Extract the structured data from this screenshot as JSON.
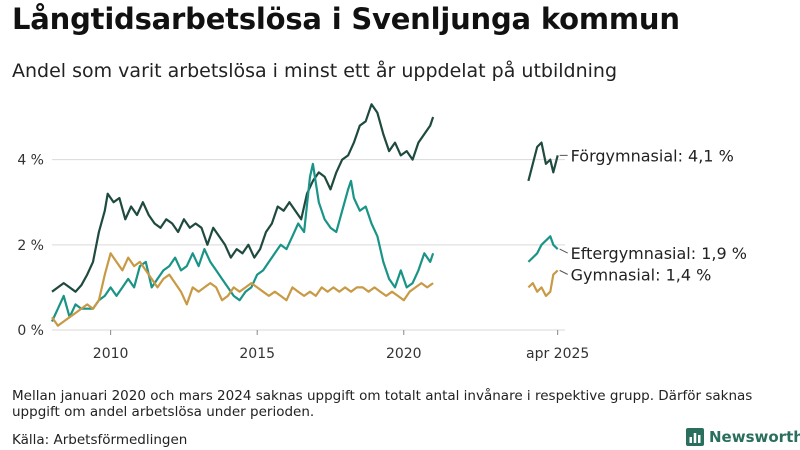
{
  "header": {
    "title": "Långtidsarbetslösa i Svenljunga kommun",
    "subtitle": "Andel som varit arbetslösa i minst ett år uppdelat på utbildning"
  },
  "footer": {
    "note": "Mellan januari 2020 och mars 2024 saknas uppgift om totalt antal invånare i respektive grupp. Därför saknas uppgift om andel arbetslösa under perioden.",
    "source": "Källa: Arbetsförmedlingen",
    "brand": "Newsworthy",
    "brand_icon": "bar-chart-logo-icon"
  },
  "chart_data": {
    "type": "line",
    "xlim": [
      2008.0,
      2025.5
    ],
    "ylim": [
      0,
      5.4
    ],
    "yticks": [
      {
        "value": 0,
        "label": "0 %"
      },
      {
        "value": 2,
        "label": "2 %"
      },
      {
        "value": 4,
        "label": "4 %"
      }
    ],
    "xticks": [
      {
        "value": 2010,
        "label": "2010"
      },
      {
        "value": 2015,
        "label": "2015"
      },
      {
        "value": 2020,
        "label": "2020"
      },
      {
        "value": 2025.25,
        "label": "apr 2025"
      }
    ],
    "grid": true,
    "series": [
      {
        "name": "Förgymnasial",
        "end_label": "Förgymnasial: 4,1 %",
        "color": "#1f4a3f",
        "segments": [
          [
            [
              2008.0,
              0.9
            ],
            [
              2008.2,
              1.0
            ],
            [
              2008.4,
              1.1
            ],
            [
              2008.6,
              1.0
            ],
            [
              2008.8,
              0.9
            ],
            [
              2009.0,
              1.05
            ],
            [
              2009.2,
              1.3
            ],
            [
              2009.4,
              1.6
            ],
            [
              2009.6,
              2.3
            ],
            [
              2009.8,
              2.8
            ],
            [
              2009.9,
              3.2
            ],
            [
              2010.1,
              3.0
            ],
            [
              2010.3,
              3.1
            ],
            [
              2010.5,
              2.6
            ],
            [
              2010.7,
              2.9
            ],
            [
              2010.9,
              2.7
            ],
            [
              2011.1,
              3.0
            ],
            [
              2011.3,
              2.7
            ],
            [
              2011.5,
              2.5
            ],
            [
              2011.7,
              2.4
            ],
            [
              2011.9,
              2.6
            ],
            [
              2012.1,
              2.5
            ],
            [
              2012.3,
              2.3
            ],
            [
              2012.5,
              2.6
            ],
            [
              2012.7,
              2.4
            ],
            [
              2012.9,
              2.5
            ],
            [
              2013.1,
              2.4
            ],
            [
              2013.3,
              2.0
            ],
            [
              2013.5,
              2.4
            ],
            [
              2013.7,
              2.2
            ],
            [
              2013.9,
              2.0
            ],
            [
              2014.1,
              1.7
            ],
            [
              2014.3,
              1.9
            ],
            [
              2014.5,
              1.8
            ],
            [
              2014.7,
              2.0
            ],
            [
              2014.9,
              1.7
            ],
            [
              2015.1,
              1.9
            ],
            [
              2015.3,
              2.3
            ],
            [
              2015.5,
              2.5
            ],
            [
              2015.7,
              2.9
            ],
            [
              2015.9,
              2.8
            ],
            [
              2016.1,
              3.0
            ],
            [
              2016.3,
              2.8
            ],
            [
              2016.5,
              2.6
            ],
            [
              2016.7,
              3.2
            ],
            [
              2016.9,
              3.5
            ],
            [
              2017.1,
              3.7
            ],
            [
              2017.3,
              3.6
            ],
            [
              2017.5,
              3.3
            ],
            [
              2017.7,
              3.7
            ],
            [
              2017.9,
              4.0
            ],
            [
              2018.1,
              4.1
            ],
            [
              2018.3,
              4.4
            ],
            [
              2018.5,
              4.8
            ],
            [
              2018.7,
              4.9
            ],
            [
              2018.9,
              5.3
            ],
            [
              2019.1,
              5.1
            ],
            [
              2019.3,
              4.6
            ],
            [
              2019.5,
              4.2
            ],
            [
              2019.7,
              4.4
            ],
            [
              2019.9,
              4.1
            ],
            [
              2020.1,
              4.2
            ],
            [
              2020.3,
              4.0
            ],
            [
              2020.5,
              4.4
            ],
            [
              2020.7,
              4.6
            ],
            [
              2020.9,
              4.8
            ],
            [
              2021.0,
              5.0
            ]
          ],
          [
            [
              2024.25,
              3.5
            ],
            [
              2024.4,
              3.9
            ],
            [
              2024.55,
              4.3
            ],
            [
              2024.7,
              4.4
            ],
            [
              2024.85,
              3.9
            ],
            [
              2025.0,
              4.0
            ],
            [
              2025.1,
              3.7
            ],
            [
              2025.25,
              4.1
            ]
          ]
        ]
      },
      {
        "name": "Eftergymnasial",
        "end_label": "Eftergymnasial: 1,9 %",
        "color": "#1a9486",
        "segments": [
          [
            [
              2008.0,
              0.2
            ],
            [
              2008.2,
              0.5
            ],
            [
              2008.4,
              0.8
            ],
            [
              2008.6,
              0.3
            ],
            [
              2008.8,
              0.6
            ],
            [
              2009.0,
              0.5
            ],
            [
              2009.2,
              0.5
            ],
            [
              2009.4,
              0.5
            ],
            [
              2009.6,
              0.7
            ],
            [
              2009.8,
              0.8
            ],
            [
              2010.0,
              1.0
            ],
            [
              2010.2,
              0.8
            ],
            [
              2010.4,
              1.0
            ],
            [
              2010.6,
              1.2
            ],
            [
              2010.8,
              1.0
            ],
            [
              2011.0,
              1.5
            ],
            [
              2011.2,
              1.6
            ],
            [
              2011.4,
              1.0
            ],
            [
              2011.6,
              1.2
            ],
            [
              2011.8,
              1.4
            ],
            [
              2012.0,
              1.5
            ],
            [
              2012.2,
              1.7
            ],
            [
              2012.4,
              1.4
            ],
            [
              2012.6,
              1.5
            ],
            [
              2012.8,
              1.8
            ],
            [
              2013.0,
              1.5
            ],
            [
              2013.2,
              1.9
            ],
            [
              2013.4,
              1.6
            ],
            [
              2013.6,
              1.4
            ],
            [
              2013.8,
              1.2
            ],
            [
              2014.0,
              1.0
            ],
            [
              2014.2,
              0.8
            ],
            [
              2014.4,
              0.7
            ],
            [
              2014.6,
              0.9
            ],
            [
              2014.8,
              1.0
            ],
            [
              2015.0,
              1.3
            ],
            [
              2015.2,
              1.4
            ],
            [
              2015.4,
              1.6
            ],
            [
              2015.6,
              1.8
            ],
            [
              2015.8,
              2.0
            ],
            [
              2016.0,
              1.9
            ],
            [
              2016.2,
              2.2
            ],
            [
              2016.4,
              2.5
            ],
            [
              2016.6,
              2.3
            ],
            [
              2016.8,
              3.6
            ],
            [
              2016.9,
              3.9
            ],
            [
              2017.1,
              3.0
            ],
            [
              2017.3,
              2.6
            ],
            [
              2017.5,
              2.4
            ],
            [
              2017.7,
              2.3
            ],
            [
              2017.9,
              2.8
            ],
            [
              2018.1,
              3.3
            ],
            [
              2018.2,
              3.5
            ],
            [
              2018.3,
              3.1
            ],
            [
              2018.5,
              2.8
            ],
            [
              2018.7,
              2.9
            ],
            [
              2018.9,
              2.5
            ],
            [
              2019.1,
              2.2
            ],
            [
              2019.3,
              1.6
            ],
            [
              2019.5,
              1.2
            ],
            [
              2019.7,
              1.0
            ],
            [
              2019.9,
              1.4
            ],
            [
              2020.1,
              1.0
            ],
            [
              2020.3,
              1.1
            ],
            [
              2020.5,
              1.4
            ],
            [
              2020.7,
              1.8
            ],
            [
              2020.9,
              1.6
            ],
            [
              2021.0,
              1.8
            ]
          ],
          [
            [
              2024.25,
              1.6
            ],
            [
              2024.4,
              1.7
            ],
            [
              2024.55,
              1.8
            ],
            [
              2024.7,
              2.0
            ],
            [
              2024.85,
              2.1
            ],
            [
              2025.0,
              2.2
            ],
            [
              2025.1,
              2.0
            ],
            [
              2025.25,
              1.9
            ]
          ]
        ]
      },
      {
        "name": "Gymnasial",
        "end_label": "Gymnasial: 1,4 %",
        "color": "#c99a45",
        "segments": [
          [
            [
              2008.0,
              0.3
            ],
            [
              2008.2,
              0.1
            ],
            [
              2008.4,
              0.2
            ],
            [
              2008.6,
              0.3
            ],
            [
              2008.8,
              0.4
            ],
            [
              2009.0,
              0.5
            ],
            [
              2009.2,
              0.6
            ],
            [
              2009.4,
              0.5
            ],
            [
              2009.6,
              0.7
            ],
            [
              2009.8,
              1.3
            ],
            [
              2010.0,
              1.8
            ],
            [
              2010.2,
              1.6
            ],
            [
              2010.4,
              1.4
            ],
            [
              2010.6,
              1.7
            ],
            [
              2010.8,
              1.5
            ],
            [
              2011.0,
              1.6
            ],
            [
              2011.2,
              1.4
            ],
            [
              2011.4,
              1.2
            ],
            [
              2011.6,
              1.0
            ],
            [
              2011.8,
              1.2
            ],
            [
              2012.0,
              1.3
            ],
            [
              2012.2,
              1.1
            ],
            [
              2012.4,
              0.9
            ],
            [
              2012.6,
              0.6
            ],
            [
              2012.8,
              1.0
            ],
            [
              2013.0,
              0.9
            ],
            [
              2013.2,
              1.0
            ],
            [
              2013.4,
              1.1
            ],
            [
              2013.6,
              1.0
            ],
            [
              2013.8,
              0.7
            ],
            [
              2014.0,
              0.8
            ],
            [
              2014.2,
              1.0
            ],
            [
              2014.4,
              0.9
            ],
            [
              2014.6,
              1.0
            ],
            [
              2014.8,
              1.1
            ],
            [
              2015.0,
              1.0
            ],
            [
              2015.2,
              0.9
            ],
            [
              2015.4,
              0.8
            ],
            [
              2015.6,
              0.9
            ],
            [
              2015.8,
              0.8
            ],
            [
              2016.0,
              0.7
            ],
            [
              2016.2,
              1.0
            ],
            [
              2016.4,
              0.9
            ],
            [
              2016.6,
              0.8
            ],
            [
              2016.8,
              0.9
            ],
            [
              2017.0,
              0.8
            ],
            [
              2017.2,
              1.0
            ],
            [
              2017.4,
              0.9
            ],
            [
              2017.6,
              1.0
            ],
            [
              2017.8,
              0.9
            ],
            [
              2018.0,
              1.0
            ],
            [
              2018.2,
              0.9
            ],
            [
              2018.4,
              1.0
            ],
            [
              2018.6,
              1.0
            ],
            [
              2018.8,
              0.9
            ],
            [
              2019.0,
              1.0
            ],
            [
              2019.2,
              0.9
            ],
            [
              2019.4,
              0.8
            ],
            [
              2019.6,
              0.9
            ],
            [
              2019.8,
              0.8
            ],
            [
              2020.0,
              0.7
            ],
            [
              2020.2,
              0.9
            ],
            [
              2020.4,
              1.0
            ],
            [
              2020.6,
              1.1
            ],
            [
              2020.8,
              1.0
            ],
            [
              2021.0,
              1.1
            ]
          ],
          [
            [
              2024.25,
              1.0
            ],
            [
              2024.4,
              1.1
            ],
            [
              2024.55,
              0.9
            ],
            [
              2024.7,
              1.0
            ],
            [
              2024.85,
              0.8
            ],
            [
              2025.0,
              0.9
            ],
            [
              2025.1,
              1.3
            ],
            [
              2025.25,
              1.4
            ]
          ]
        ]
      }
    ]
  }
}
